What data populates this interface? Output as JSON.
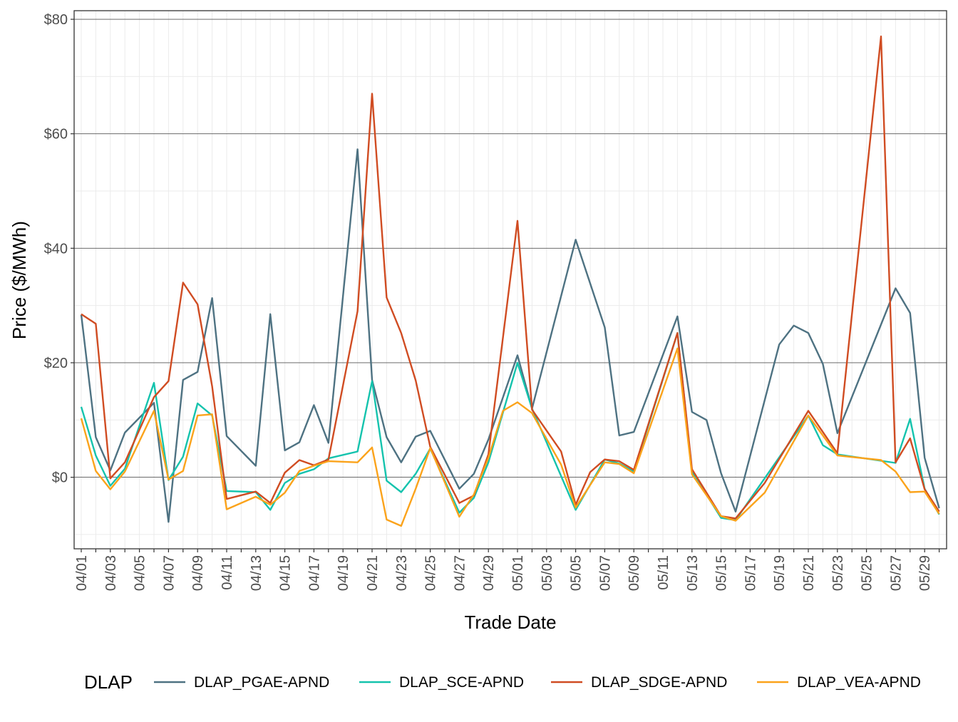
{
  "chart_data": {
    "type": "line",
    "xlabel": "Trade Date",
    "ylabel": "Price ($/MWh)",
    "ylim": [
      -12.5,
      81.5
    ],
    "y_ticks": [
      {
        "value": 0,
        "label": "$0"
      },
      {
        "value": 20,
        "label": "$20"
      },
      {
        "value": 40,
        "label": "$40"
      },
      {
        "value": 60,
        "label": "$60"
      },
      {
        "value": 80,
        "label": "$80"
      }
    ],
    "x_tick_labels": [
      "04/01",
      "04/03",
      "04/05",
      "04/07",
      "04/09",
      "04/11",
      "04/13",
      "04/15",
      "04/17",
      "04/19",
      "04/21",
      "04/23",
      "04/25",
      "04/27",
      "04/29",
      "05/01",
      "05/03",
      "05/05",
      "05/07",
      "05/09",
      "05/11",
      "05/13",
      "05/15",
      "05/17",
      "05/19",
      "05/21",
      "05/23",
      "05/25",
      "05/27",
      "05/29"
    ],
    "grid": true,
    "legend": {
      "title": "DLAP",
      "position": "bottom"
    },
    "x": [
      "04/01",
      "04/02",
      "04/03",
      "04/04",
      "04/05",
      "04/06",
      "04/07",
      "04/08",
      "04/09",
      "04/10",
      "04/11",
      "04/12",
      "04/13",
      "04/14",
      "04/15",
      "04/16",
      "04/17",
      "04/18",
      "04/19",
      "04/20",
      "04/21",
      "04/22",
      "04/23",
      "04/24",
      "04/25",
      "04/26",
      "04/27",
      "04/28",
      "04/29",
      "04/30",
      "05/01",
      "05/02",
      "05/03",
      "05/04",
      "05/05",
      "05/06",
      "05/07",
      "05/08",
      "05/09",
      "05/10",
      "05/11",
      "05/12",
      "05/13",
      "05/14",
      "05/15",
      "05/16",
      "05/17",
      "05/18",
      "05/19",
      "05/20",
      "05/21",
      "05/22",
      "05/23",
      "05/24",
      "05/25",
      "05/26",
      "05/27",
      "05/28",
      "05/29",
      "05/30"
    ],
    "series": [
      {
        "name": "DLAP_PGAE-APND",
        "color": "#4e7282",
        "values": [
          28.4,
          7.0,
          1.2,
          7.8,
          null,
          13.0,
          -7.8,
          17.0,
          18.4,
          31.3,
          7.2,
          null,
          2.0,
          28.5,
          4.7,
          6.1,
          12.6,
          6.0,
          null,
          57.3,
          17.0,
          7.0,
          2.6,
          7.1,
          8.1,
          null,
          -2.0,
          0.6,
          6.6,
          null,
          21.3,
          12.0,
          null,
          null,
          41.5,
          null,
          26.2,
          7.3,
          7.9,
          null,
          null,
          28.1,
          11.4,
          10.0,
          0.7,
          -6.0,
          null,
          null,
          23.2,
          26.5,
          25.2,
          19.8,
          7.7,
          null,
          null,
          null,
          33.0,
          28.7,
          3.4,
          -5.4
        ]
      },
      {
        "name": "DLAP_SCE-APND",
        "color": "#14c3ad",
        "values": [
          12.3,
          3.8,
          -1.5,
          1.5,
          null,
          16.5,
          -0.5,
          3.6,
          12.9,
          10.8,
          -2.4,
          null,
          -2.6,
          -5.7,
          -1.0,
          0.6,
          1.4,
          3.3,
          null,
          4.5,
          16.8,
          -0.6,
          -2.6,
          0.6,
          5.0,
          null,
          -6.2,
          -3.6,
          2.6,
          null,
          20.0,
          12.0,
          null,
          null,
          -5.7,
          null,
          3.1,
          2.4,
          1.0,
          null,
          null,
          25.2,
          1.0,
          null,
          -7.1,
          -7.5,
          null,
          null,
          null,
          null,
          10.8,
          5.6,
          4.0,
          null,
          null,
          null,
          2.5,
          10.2,
          -2.0,
          -6.5
        ]
      },
      {
        "name": "DLAP_SDGE-APND",
        "color": "#d04c22",
        "values": [
          28.5,
          26.8,
          -0.2,
          2.6,
          null,
          14.0,
          16.8,
          34.0,
          30.2,
          15.9,
          -3.8,
          null,
          -2.5,
          -4.5,
          0.8,
          3.0,
          2.1,
          3.1,
          null,
          29.0,
          67.0,
          31.4,
          25.2,
          16.9,
          5.3,
          null,
          -4.5,
          -3.2,
          4.0,
          null,
          44.8,
          11.8,
          null,
          4.5,
          -4.8,
          0.9,
          3.1,
          2.8,
          1.3,
          null,
          null,
          25.2,
          1.4,
          null,
          -6.8,
          -7.2,
          null,
          -1.0,
          null,
          null,
          11.6,
          null,
          4.2,
          null,
          null,
          77.0,
          2.6,
          6.8,
          -2.1,
          -6.0
        ]
      },
      {
        "name": "DLAP_VEA-APND",
        "color": "#fba31b",
        "values": [
          10.3,
          1.1,
          -2.1,
          1.0,
          null,
          11.6,
          -0.4,
          1.1,
          10.8,
          11.0,
          -5.6,
          null,
          -3.4,
          -4.8,
          -2.7,
          1.1,
          2.0,
          2.8,
          null,
          2.6,
          5.2,
          -7.4,
          -8.5,
          -2.0,
          5.1,
          null,
          -6.9,
          -3.0,
          3.4,
          11.6,
          13.1,
          11.2,
          null,
          2.2,
          -5.3,
          null,
          2.6,
          2.3,
          0.7,
          null,
          null,
          22.5,
          0.5,
          null,
          -6.8,
          -7.6,
          null,
          -2.7,
          null,
          null,
          10.8,
          null,
          3.8,
          null,
          null,
          3.0,
          1.0,
          -2.6,
          -2.5,
          -6.4
        ]
      }
    ]
  }
}
